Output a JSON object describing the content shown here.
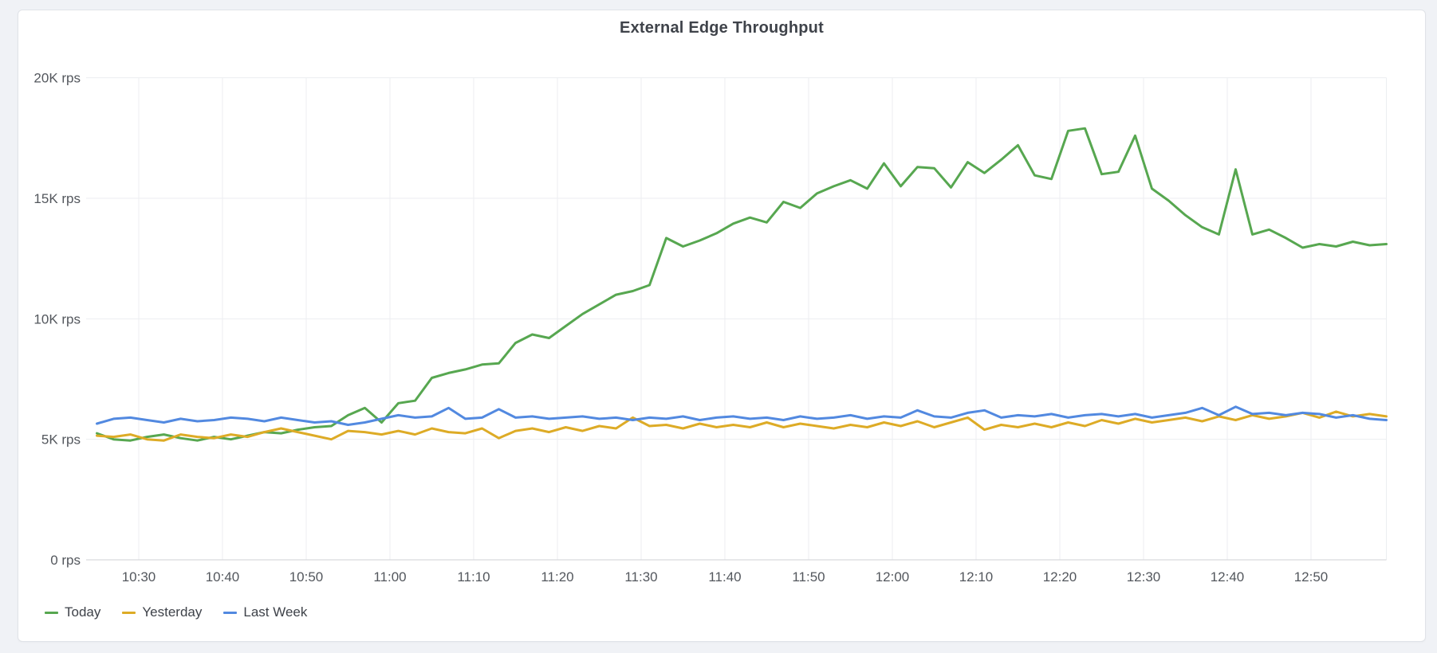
{
  "panel": {
    "title": "External Edge Throughput"
  },
  "legend": {
    "items": [
      {
        "label": "Today"
      },
      {
        "label": "Yesterday"
      },
      {
        "label": "Last Week"
      }
    ]
  },
  "chart_data": {
    "type": "line",
    "title": "External Edge Throughput",
    "y_unit": "rps",
    "ylim": [
      0,
      20000
    ],
    "y_tick_step": 5000,
    "y_tick_labels": [
      "0 rps",
      "5K rps",
      "10K rps",
      "15K rps",
      "20K rps"
    ],
    "x_start": "10:25",
    "x_end": "12:59",
    "x_interval_minutes": 2,
    "x_tick_labels": [
      "10:30",
      "10:40",
      "10:50",
      "11:00",
      "11:10",
      "11:20",
      "11:30",
      "11:40",
      "11:50",
      "12:00",
      "12:10",
      "12:20",
      "12:30",
      "12:40",
      "12:50"
    ],
    "grid": true,
    "legend_position": "bottom-left",
    "series": [
      {
        "name": "Today",
        "color": "#57a750",
        "values": [
          5250,
          5000,
          4950,
          5100,
          5200,
          5050,
          4950,
          5100,
          5000,
          5150,
          5300,
          5250,
          5400,
          5500,
          5550,
          6000,
          6300,
          5700,
          6500,
          6600,
          7550,
          7750,
          7900,
          8100,
          8150,
          9000,
          9350,
          9200,
          9700,
          10200,
          10600,
          11000,
          11150,
          11400,
          13350,
          13000,
          13250,
          13550,
          13950,
          14200,
          14000,
          14850,
          14600,
          15200,
          15500,
          15750,
          15400,
          16450,
          15500,
          16300,
          16250,
          15450,
          16500,
          16050,
          16600,
          17200,
          15950,
          15800,
          17800,
          17900,
          16000,
          16100,
          17600,
          15400,
          14900,
          14300,
          13800,
          13500,
          16200,
          13500,
          13700,
          13350,
          12950,
          13100,
          13000,
          13200,
          13050,
          13100
        ]
      },
      {
        "name": "Yesterday",
        "color": "#ddab26",
        "values": [
          5150,
          5100,
          5200,
          5000,
          4950,
          5200,
          5100,
          5050,
          5200,
          5100,
          5300,
          5450,
          5300,
          5150,
          5000,
          5350,
          5300,
          5200,
          5350,
          5200,
          5450,
          5300,
          5250,
          5450,
          5050,
          5350,
          5450,
          5300,
          5500,
          5350,
          5550,
          5450,
          5900,
          5550,
          5600,
          5450,
          5650,
          5500,
          5600,
          5500,
          5700,
          5500,
          5650,
          5550,
          5450,
          5600,
          5500,
          5700,
          5550,
          5750,
          5500,
          5700,
          5900,
          5400,
          5600,
          5500,
          5650,
          5500,
          5700,
          5550,
          5800,
          5650,
          5850,
          5700,
          5800,
          5900,
          5750,
          5950,
          5800,
          6000,
          5850,
          5950,
          6100,
          5900,
          6150,
          5950,
          6050,
          5950
        ]
      },
      {
        "name": "Last Week",
        "color": "#5289e0",
        "values": [
          5650,
          5850,
          5900,
          5800,
          5700,
          5850,
          5750,
          5800,
          5900,
          5850,
          5750,
          5900,
          5800,
          5700,
          5750,
          5600,
          5700,
          5850,
          6000,
          5900,
          5950,
          6300,
          5850,
          5900,
          6250,
          5900,
          5950,
          5850,
          5900,
          5950,
          5850,
          5900,
          5800,
          5900,
          5850,
          5950,
          5800,
          5900,
          5950,
          5850,
          5900,
          5800,
          5950,
          5850,
          5900,
          6000,
          5850,
          5950,
          5900,
          6200,
          5950,
          5900,
          6100,
          6200,
          5900,
          6000,
          5950,
          6050,
          5900,
          6000,
          6050,
          5950,
          6050,
          5900,
          6000,
          6100,
          6300,
          6000,
          6350,
          6050,
          6100,
          6000,
          6100,
          6050,
          5900,
          6000,
          5850,
          5800
        ]
      }
    ]
  },
  "colors": {
    "page_background": "#f0f2f6",
    "panel_background": "#ffffff",
    "panel_border": "#e0e3e8",
    "gridline": "#eceef1",
    "axis_baseline": "#cfd2d6",
    "tick_text": "#53575d",
    "title_text": "#3f434a"
  }
}
